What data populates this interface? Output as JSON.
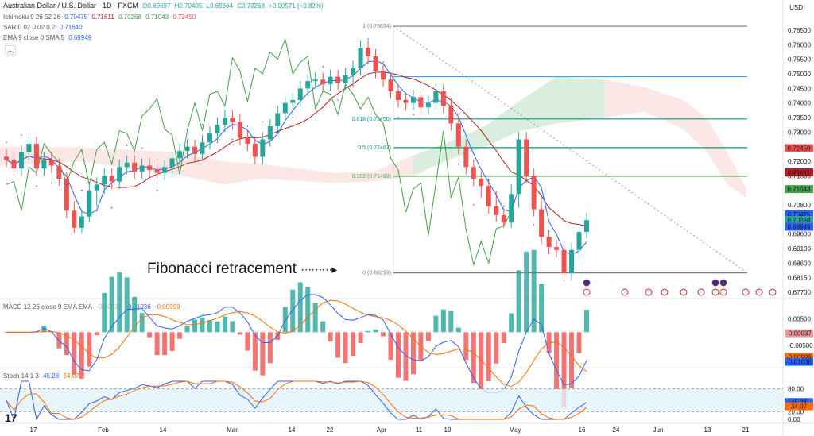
{
  "header": {
    "symbol": "Australian Dollar / U.S. Dollar · 1D · FXCM",
    "open": "O0.69697",
    "high": "H0.70405",
    "low": "L0.69664",
    "close": "C0.70268",
    "change": "+0.00571 (+0.82%)",
    "ichimoku": {
      "label": "Ichimoku 9 26 52 26",
      "v1": "0.70475",
      "v2": "0.71611",
      "v3": "0.70268",
      "v4": "0.71043",
      "v5": "0.72450"
    },
    "sar": {
      "label": "SAR 0.02 0.02 0.2",
      "v1": "0.71640"
    },
    "ema": {
      "label": "EMA 9 close 0 SMA 5",
      "v1": "0.69949"
    },
    "currency": "USD"
  },
  "annotation": "Fibonacci retracement",
  "colors": {
    "up": "#26a69a",
    "down": "#ef5350",
    "tenkan": "#2962ff",
    "kijun": "#b71c1c",
    "chikou": "#43a047",
    "macd": "#2962ff",
    "signal": "#ff6d00",
    "stochK": "#2962ff",
    "stochD": "#ff6d00"
  },
  "chart_data": {
    "type": "candlestick",
    "ylim": [
      0.677,
      0.7665
    ],
    "y_ticks": [
      "0.76500",
      "0.76000",
      "0.75500",
      "0.75000",
      "0.74500",
      "0.74000",
      "0.73500",
      "0.73000",
      "0.72500",
      "0.72000",
      "0.71500",
      "0.71000",
      "0.70800",
      "0.70300",
      "0.69600",
      "0.69100",
      "0.68600",
      "0.68150",
      "0.67700"
    ],
    "x_labels": [
      "17",
      "Feb",
      "14",
      "Mar",
      "14",
      "22",
      "Apr",
      "11",
      "19",
      "May",
      "16",
      "24",
      "Jun",
      "13",
      "21"
    ],
    "fib_levels": [
      {
        "ratio": "1",
        "value": "0.76634"
      },
      {
        "ratio": "0.618",
        "value": "0.73450"
      },
      {
        "ratio": "0.5",
        "value": "0.72467"
      },
      {
        "ratio": "0.382",
        "value": "0.71483"
      },
      {
        "ratio": "0",
        "value": "0.68299"
      }
    ],
    "price_tags": [
      {
        "value": "0.72450",
        "color": "#ef5350",
        "y": 0.7245
      },
      {
        "value": "0.71640",
        "color": "#2962ff",
        "y": 0.7164
      },
      {
        "value": "0.71611",
        "color": "#b71c1c",
        "y": 0.71611
      },
      {
        "value": "0.71043",
        "color": "#43a047",
        "y": 0.71043
      },
      {
        "value": "0.70475",
        "color": "#2962ff",
        "y": 0.70475
      },
      {
        "value": "0.70268",
        "color": "#26a69a",
        "y": 0.70268
      },
      {
        "value": "0.69949",
        "color": "#2962ff",
        "y": 0.69949
      }
    ],
    "closes": [
      0.7205,
      0.7175,
      0.723,
      0.726,
      0.7175,
      0.7205,
      0.7185,
      0.714,
      0.706,
      0.699,
      0.704,
      0.71,
      0.712,
      0.715,
      0.713,
      0.718,
      0.7195,
      0.7165,
      0.7185,
      0.717,
      0.716,
      0.718,
      0.721,
      0.7235,
      0.725,
      0.7225,
      0.7265,
      0.7295,
      0.7325,
      0.735,
      0.7335,
      0.728,
      0.726,
      0.7215,
      0.7275,
      0.732,
      0.7365,
      0.74,
      0.741,
      0.745,
      0.7475,
      0.748,
      0.7465,
      0.749,
      0.747,
      0.7495,
      0.752,
      0.759,
      0.756,
      0.751,
      0.748,
      0.744,
      0.741,
      0.74,
      0.742,
      0.7385,
      0.74,
      0.744,
      0.739,
      0.733,
      0.725,
      0.718,
      0.714,
      0.7115,
      0.7075,
      0.7045,
      0.7015,
      0.7095,
      0.7275,
      0.715,
      0.7065,
      0.695,
      0.6915,
      0.6905,
      0.683,
      0.6905,
      0.697,
      0.7027
    ],
    "tenkan_points": 78,
    "macd": {
      "label": "MACD 12 26 close 9 EMA EMA",
      "hist": "-0.00037",
      "macd_v": "-0.01036",
      "signal_v": "-0.00999",
      "y_ticks": [
        "0.00500",
        "0.00000",
        "-0.00500"
      ],
      "ylim": [
        -0.0125,
        0.0085
      ]
    },
    "stoch": {
      "label": "Stoch 14 1 3",
      "k": "45.28",
      "d": "34.07",
      "y_ticks": [
        "80.00",
        "20.00",
        "0.00"
      ],
      "ylim": [
        0,
        100
      ]
    }
  }
}
